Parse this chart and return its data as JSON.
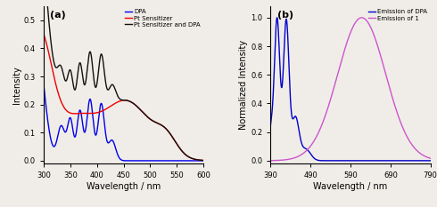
{
  "panel_a": {
    "title": "(a)",
    "xlabel": "Wavelength / nm",
    "ylabel": "Intensity",
    "xlim": [
      300,
      600
    ],
    "ylim": [
      -0.01,
      0.55
    ],
    "yticks": [
      0,
      0.1,
      0.2,
      0.3,
      0.4,
      0.5
    ],
    "xticks": [
      300,
      350,
      400,
      450,
      500,
      550,
      600
    ],
    "legend": [
      "DPA",
      "Pt Sensitizer",
      "Pt Sensitizer and DPA"
    ],
    "colors": {
      "dpa": "#0000ee",
      "sensitizer": "#ee0000",
      "mixture": "#111111"
    }
  },
  "panel_b": {
    "title": "(b)",
    "xlabel": "Wavelength / nm",
    "ylabel": "Normalized Intensity",
    "xlim": [
      390,
      790
    ],
    "ylim": [
      -0.02,
      1.08
    ],
    "yticks": [
      0,
      0.2,
      0.4,
      0.6,
      0.8,
      1.0
    ],
    "xticks": [
      390,
      490,
      590,
      690,
      790
    ],
    "legend": [
      "Emission of DPA",
      "Emission of 1"
    ],
    "colors": {
      "dpa_em": "#0000cc",
      "sensitizer_em": "#cc55cc"
    }
  },
  "bg_color": "#f0ede8",
  "lw": 1.0
}
